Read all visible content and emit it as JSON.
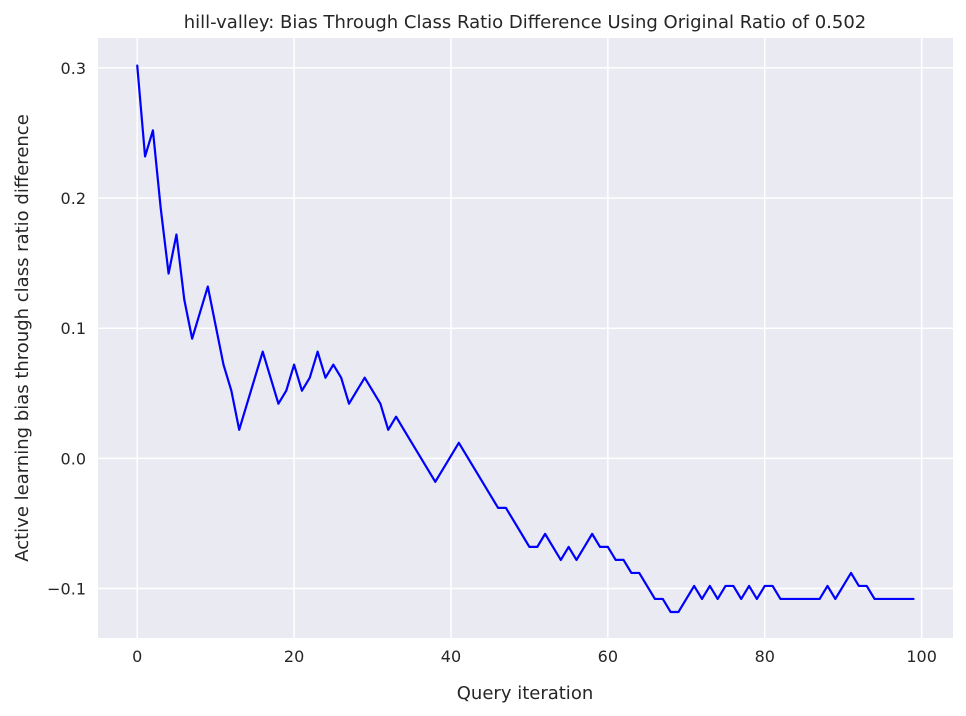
{
  "chart_data": {
    "type": "line",
    "title": "hill-valley: Bias Through Class Ratio Difference Using Original Ratio of 0.502",
    "xlabel": "Query iteration",
    "ylabel": "Active learning bias through class ratio difference",
    "xlim": [
      -5,
      104
    ],
    "ylim": [
      -0.138,
      0.323
    ],
    "xticks": [
      0,
      20,
      40,
      60,
      80,
      100
    ],
    "xtick_labels": [
      "0",
      "20",
      "40",
      "60",
      "80",
      "100"
    ],
    "yticks": [
      -0.1,
      0.0,
      0.1,
      0.2,
      0.3
    ],
    "ytick_labels": [
      "−0.1",
      "0.0",
      "0.1",
      "0.2",
      "0.3"
    ],
    "grid": true,
    "colors": {
      "background": "#EAEAF2",
      "grid": "#FFFFFF",
      "line": "#0000FF",
      "text": "#262626"
    },
    "series": [
      {
        "name": "bias",
        "x": [
          0,
          1,
          2,
          3,
          4,
          5,
          6,
          7,
          8,
          9,
          10,
          11,
          12,
          13,
          14,
          15,
          16,
          17,
          18,
          19,
          20,
          21,
          22,
          23,
          24,
          25,
          26,
          27,
          28,
          29,
          30,
          31,
          32,
          33,
          34,
          35,
          36,
          37,
          38,
          39,
          40,
          41,
          42,
          43,
          44,
          45,
          46,
          47,
          48,
          49,
          50,
          51,
          52,
          53,
          54,
          55,
          56,
          57,
          58,
          59,
          60,
          61,
          62,
          63,
          64,
          65,
          66,
          67,
          68,
          69,
          70,
          71,
          72,
          73,
          74,
          75,
          76,
          77,
          78,
          79,
          80,
          81,
          82,
          83,
          84,
          85,
          86,
          87,
          88,
          89,
          90,
          91,
          92,
          93,
          94,
          95,
          96,
          97,
          98,
          99
        ],
        "values": [
          0.302,
          0.232,
          0.252,
          0.192,
          0.142,
          0.172,
          0.122,
          0.092,
          0.112,
          0.132,
          0.102,
          0.072,
          0.052,
          0.022,
          0.042,
          0.062,
          0.082,
          0.062,
          0.042,
          0.052,
          0.072,
          0.052,
          0.062,
          0.082,
          0.062,
          0.072,
          0.062,
          0.042,
          0.052,
          0.062,
          0.052,
          0.042,
          0.022,
          0.032,
          0.022,
          0.012,
          0.002,
          -0.008,
          -0.018,
          -0.008,
          0.002,
          0.012,
          0.002,
          -0.008,
          -0.018,
          -0.028,
          -0.038,
          -0.038,
          -0.048,
          -0.058,
          -0.068,
          -0.068,
          -0.058,
          -0.068,
          -0.078,
          -0.068,
          -0.078,
          -0.068,
          -0.058,
          -0.068,
          -0.068,
          -0.078,
          -0.078,
          -0.088,
          -0.088,
          -0.098,
          -0.108,
          -0.108,
          -0.118,
          -0.118,
          -0.108,
          -0.098,
          -0.108,
          -0.098,
          -0.108,
          -0.098,
          -0.098,
          -0.108,
          -0.098,
          -0.108,
          -0.098,
          -0.098,
          -0.108,
          -0.108,
          -0.108,
          -0.108,
          -0.108,
          -0.108,
          -0.098,
          -0.108,
          -0.098,
          -0.088,
          -0.098,
          -0.098,
          -0.108,
          -0.108,
          -0.108,
          -0.108,
          -0.108,
          -0.108
        ]
      }
    ]
  }
}
